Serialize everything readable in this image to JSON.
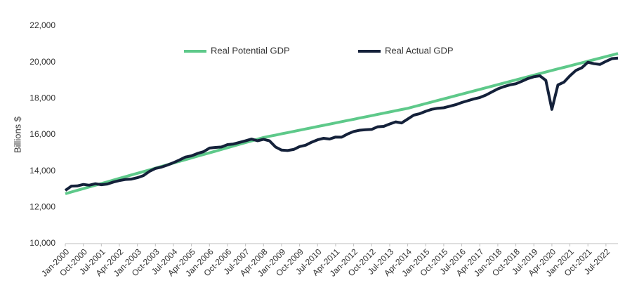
{
  "chart_data": {
    "type": "line",
    "y_label": "Billions $",
    "categories": [
      "Jan-2000",
      null,
      null,
      "Oct-2000",
      null,
      null,
      "Jul-2001",
      null,
      null,
      "Apr-2002",
      null,
      null,
      "Jan-2003",
      null,
      null,
      "Oct-2003",
      null,
      null,
      "Jul-2004",
      null,
      null,
      "Apr-2005",
      null,
      null,
      "Jan-2006",
      null,
      null,
      "Oct-2006",
      null,
      null,
      "Jul-2007",
      null,
      null,
      "Apr-2008",
      null,
      null,
      "Jan-2009",
      null,
      null,
      "Oct-2009",
      null,
      null,
      "Jul-2010",
      null,
      null,
      "Apr-2011",
      null,
      null,
      "Jan-2012",
      null,
      null,
      "Oct-2012",
      null,
      null,
      "Jul-2013",
      null,
      null,
      "Apr-2014",
      null,
      null,
      "Jan-2015",
      null,
      null,
      "Oct-2015",
      null,
      null,
      "Jul-2016",
      null,
      null,
      "Apr-2017",
      null,
      null,
      "Jan-2018",
      null,
      null,
      "Oct-2018",
      null,
      null,
      "Jul-2019",
      null,
      null,
      "Apr-2020",
      null,
      null,
      "Jan-2021",
      null,
      null,
      "Oct-2021",
      null,
      null,
      "Jul-2022",
      null,
      null
    ],
    "series": [
      {
        "name": "Real Potential GDP",
        "color": "#5ec98a",
        "values": [
          12750,
          12844,
          12938,
          13032,
          13126,
          13220,
          13314,
          13408,
          13502,
          13596,
          13690,
          13784,
          13878,
          13972,
          14066,
          14160,
          14254,
          14348,
          14442,
          14536,
          14630,
          14724,
          14818,
          14912,
          15006,
          15100,
          15194,
          15288,
          15382,
          15476,
          15570,
          15664,
          15758,
          15852,
          15919,
          15986,
          16053,
          16120,
          16187,
          16254,
          16321,
          16388,
          16455,
          16522,
          16589,
          16656,
          16723,
          16790,
          16857,
          16924,
          16991,
          17058,
          17125,
          17192,
          17259,
          17326,
          17393,
          17460,
          17547,
          17634,
          17721,
          17808,
          17895,
          17982,
          18069,
          18156,
          18243,
          18330,
          18417,
          18504,
          18591,
          18678,
          18765,
          18852,
          18939,
          19026,
          19113,
          19200,
          19287,
          19374,
          19461,
          19548,
          19633,
          19718,
          19803,
          19888,
          19973,
          20058,
          20143,
          20228,
          20313,
          20398,
          20483
        ]
      },
      {
        "name": "Real Actual GDP",
        "color": "#14213a",
        "values": [
          12935,
          13170,
          13183,
          13262,
          13219,
          13301,
          13249,
          13285,
          13394,
          13478,
          13538,
          13559,
          13635,
          13752,
          13985,
          14146,
          14221,
          14330,
          14464,
          14609,
          14772,
          14839,
          14972,
          15067,
          15267,
          15302,
          15327,
          15457,
          15493,
          15582,
          15666,
          15762,
          15672,
          15752,
          15667,
          15328,
          15156,
          15134,
          15190,
          15350,
          15428,
          15588,
          15726,
          15808,
          15769,
          15876,
          15870,
          16048,
          16180,
          16253,
          16283,
          16300,
          16442,
          16464,
          16595,
          16713,
          16654,
          16869,
          17084,
          17165,
          17297,
          17404,
          17464,
          17492,
          17575,
          17660,
          17780,
          17876,
          17978,
          18054,
          18186,
          18360,
          18531,
          18654,
          18752,
          18814,
          18950,
          19100,
          19200,
          19250,
          19000,
          17400,
          18750,
          18900,
          19250,
          19550,
          19700,
          20000,
          19920,
          19880,
          20050,
          20200,
          20230
        ]
      }
    ],
    "ylim": [
      10000,
      22000
    ],
    "yticks": [
      {
        "value": 10000,
        "label": "10,000"
      },
      {
        "value": 12000,
        "label": "12,000"
      },
      {
        "value": 14000,
        "label": "14,000"
      },
      {
        "value": 16000,
        "label": "16,000"
      },
      {
        "value": 18000,
        "label": "18,000"
      },
      {
        "value": 20000,
        "label": "20,000"
      },
      {
        "value": 22000,
        "label": "22,000"
      }
    ],
    "grid": false
  }
}
